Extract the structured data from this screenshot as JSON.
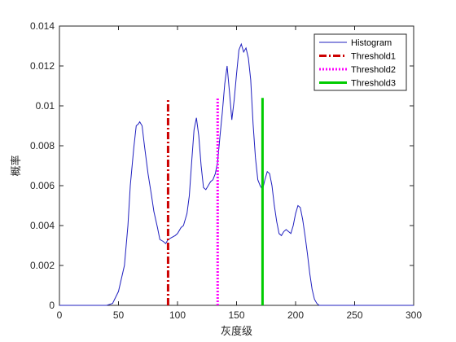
{
  "chart_data": {
    "type": "line",
    "xlabel": "灰度级",
    "ylabel": "概率",
    "xlim": [
      0,
      300
    ],
    "ylim": [
      0,
      0.014
    ],
    "x_ticks": [
      "0",
      "50",
      "100",
      "150",
      "200",
      "250",
      "300"
    ],
    "y_ticks": [
      "0",
      "0.002",
      "0.004",
      "0.006",
      "0.008",
      "0.01",
      "0.012",
      "0.014"
    ],
    "grid": false,
    "legend_position": "top-right",
    "series": [
      {
        "name": "Histogram",
        "kind": "line",
        "color": "#1f1fbf",
        "x": [
          0,
          40,
          45,
          50,
          55,
          58,
          60,
          63,
          65,
          67,
          68,
          70,
          72,
          75,
          78,
          80,
          83,
          85,
          88,
          90,
          92,
          95,
          98,
          100,
          103,
          105,
          108,
          110,
          112,
          114,
          116,
          118,
          120,
          122,
          124,
          126,
          128,
          130,
          132,
          134,
          136,
          138,
          140,
          142,
          144,
          146,
          148,
          150,
          152,
          154,
          156,
          158,
          160,
          162,
          164,
          166,
          168,
          170,
          172,
          174,
          176,
          178,
          180,
          182,
          184,
          186,
          188,
          190,
          192,
          194,
          196,
          198,
          200,
          202,
          204,
          206,
          208,
          210,
          212,
          214,
          216,
          218,
          220,
          225,
          230,
          300
        ],
        "y": [
          0,
          0,
          0.0001,
          0.0007,
          0.002,
          0.004,
          0.006,
          0.0079,
          0.009,
          0.0091,
          0.0092,
          0.009,
          0.008,
          0.0066,
          0.0055,
          0.0047,
          0.0039,
          0.0033,
          0.0032,
          0.0031,
          0.0033,
          0.0034,
          0.0035,
          0.0036,
          0.0039,
          0.004,
          0.0046,
          0.0055,
          0.0072,
          0.0088,
          0.0094,
          0.0085,
          0.007,
          0.0059,
          0.0058,
          0.006,
          0.0062,
          0.0063,
          0.0066,
          0.0072,
          0.0085,
          0.0097,
          0.0111,
          0.012,
          0.0107,
          0.0093,
          0.0103,
          0.0116,
          0.0128,
          0.0131,
          0.0127,
          0.0129,
          0.0124,
          0.0113,
          0.0091,
          0.0074,
          0.0063,
          0.006,
          0.0058,
          0.0063,
          0.0067,
          0.0066,
          0.006,
          0.005,
          0.0042,
          0.0036,
          0.0035,
          0.0037,
          0.0038,
          0.0037,
          0.0036,
          0.004,
          0.0046,
          0.005,
          0.0049,
          0.0043,
          0.0035,
          0.0026,
          0.0016,
          0.0008,
          0.0003,
          0.0001,
          0,
          0,
          0,
          0
        ]
      },
      {
        "name": "Threshold1",
        "kind": "vline",
        "x": 92,
        "y_top": 0.0104,
        "color": "#cc0000",
        "style": "dash-dot"
      },
      {
        "name": "Threshold2",
        "kind": "vline",
        "x": 134,
        "y_top": 0.0104,
        "color": "#ff00ff",
        "style": "dotted"
      },
      {
        "name": "Threshold3",
        "kind": "vline",
        "x": 172,
        "y_top": 0.0104,
        "color": "#00cc00",
        "style": "solid"
      }
    ]
  }
}
